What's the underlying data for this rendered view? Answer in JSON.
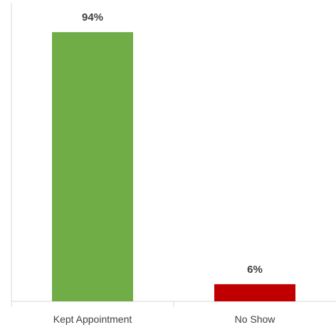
{
  "chart_data": {
    "type": "bar",
    "categories": [
      "Kept Appointment",
      "No Show"
    ],
    "values": [
      94,
      6
    ],
    "data_labels": [
      "94%",
      "6%"
    ],
    "colors": [
      "#70ad47",
      "#c00000"
    ],
    "title": "",
    "xlabel": "",
    "ylabel": "",
    "ylim": [
      0,
      100
    ],
    "grid": false,
    "legend": "none"
  }
}
